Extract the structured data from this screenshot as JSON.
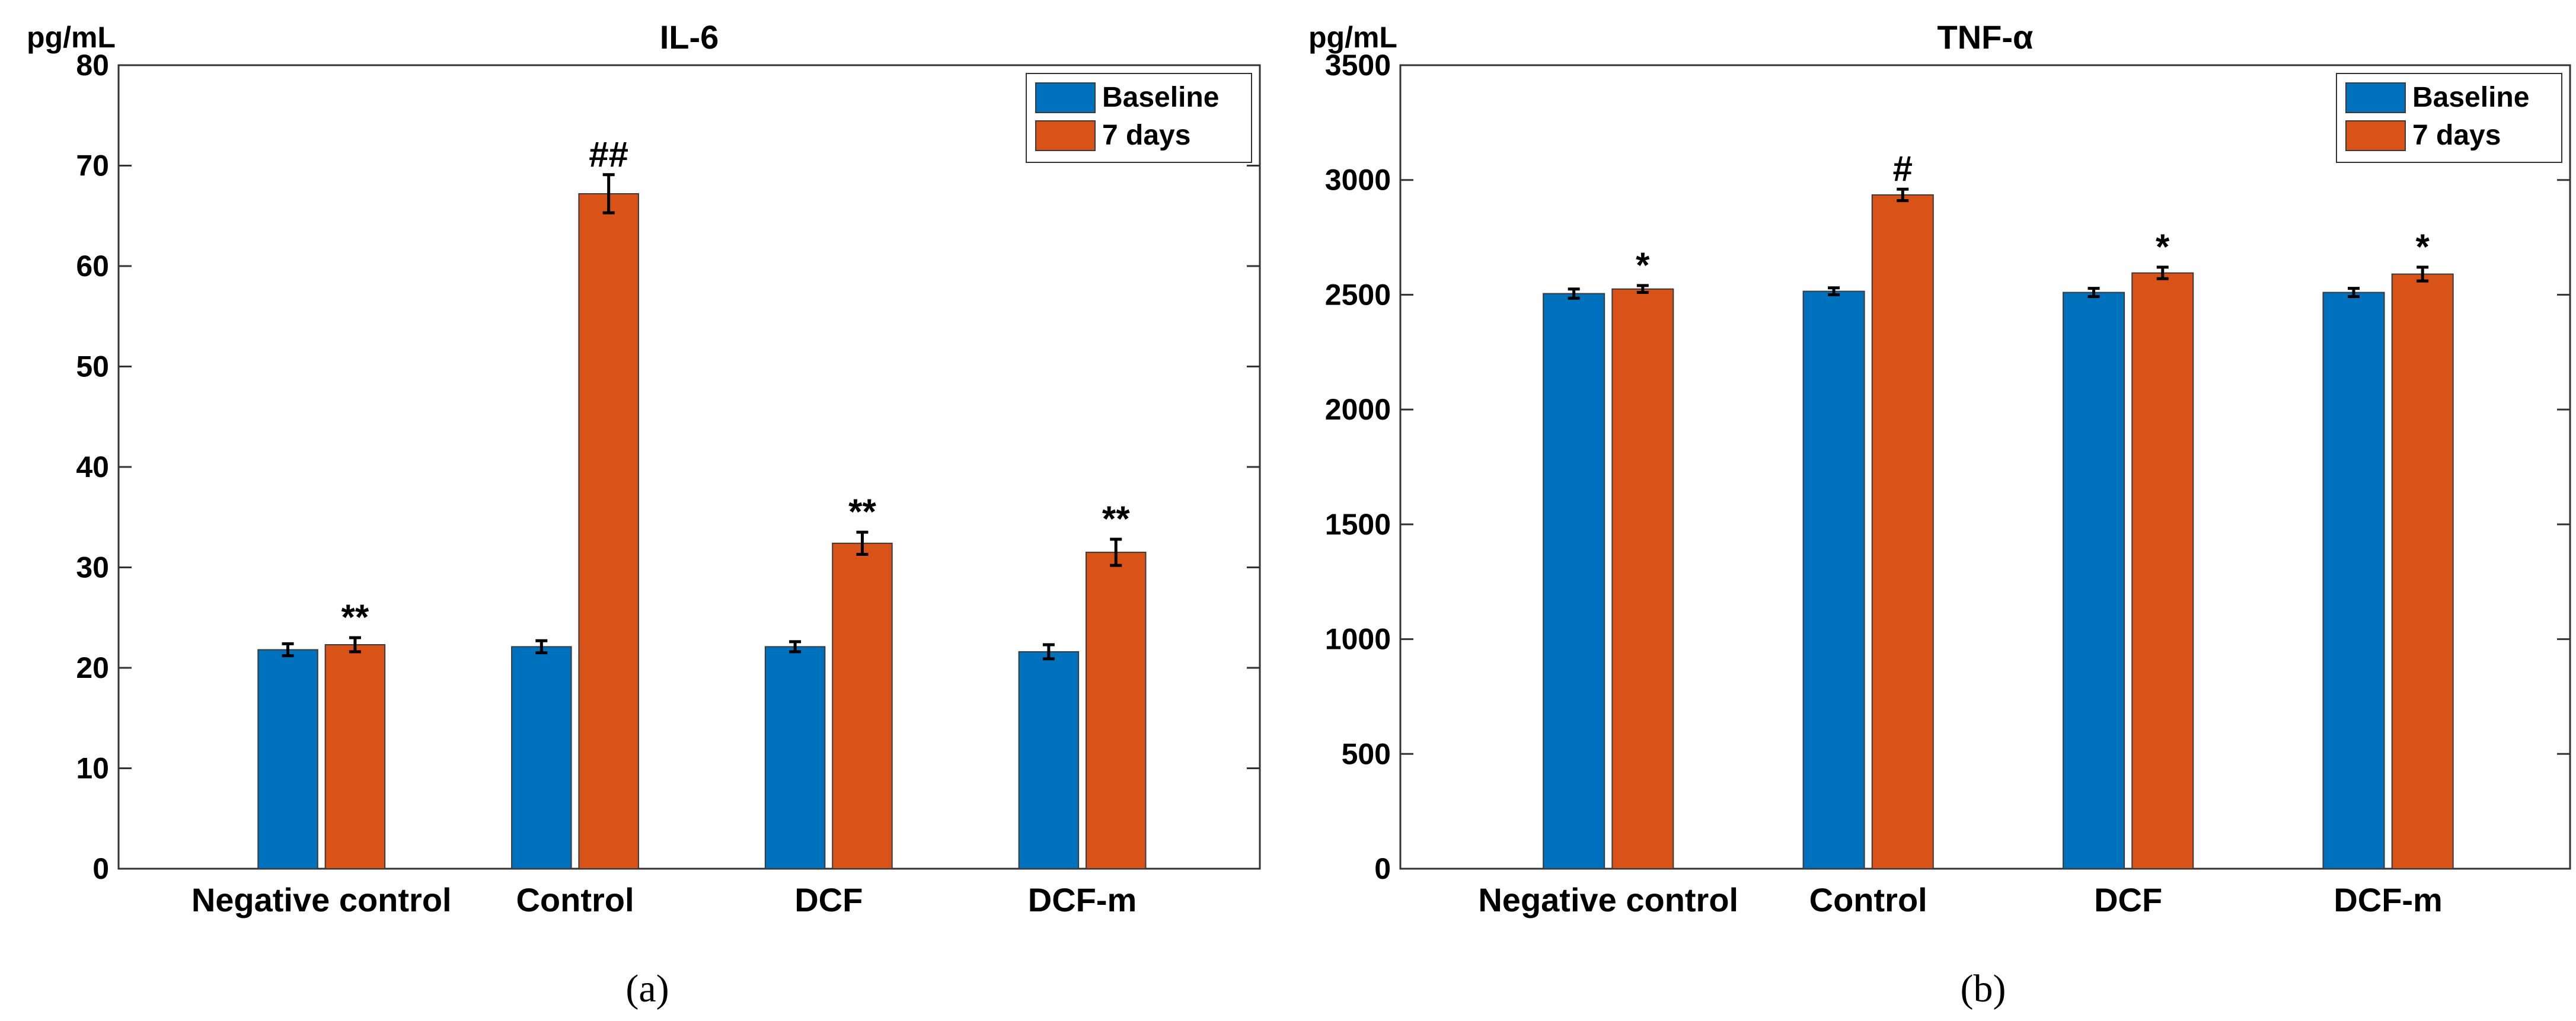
{
  "chart_data": [
    {
      "type": "bar",
      "title": "IL-6",
      "unit_label": "pg/mL",
      "xlabel": "",
      "ylabel": "pg/mL",
      "ylim": [
        0,
        80
      ],
      "yticks": [
        0,
        10,
        20,
        30,
        40,
        50,
        60,
        70,
        80
      ],
      "categories": [
        "Negative control",
        "Control",
        "DCF",
        "DCF-m"
      ],
      "series": [
        {
          "name": "Baseline",
          "color": "#0072BD",
          "values": [
            21.8,
            22.1,
            22.1,
            21.6
          ],
          "errors": [
            0.6,
            0.6,
            0.5,
            0.7
          ]
        },
        {
          "name": "7 days",
          "color": "#D95319",
          "values": [
            22.3,
            67.2,
            32.4,
            31.5
          ],
          "errors": [
            0.7,
            1.9,
            1.1,
            1.3
          ]
        }
      ],
      "annotations": [
        {
          "category": "Negative control",
          "series": "7 days",
          "text": "**"
        },
        {
          "category": "Control",
          "series": "7 days",
          "text": "##"
        },
        {
          "category": "DCF",
          "series": "7 days",
          "text": "**"
        },
        {
          "category": "DCF-m",
          "series": "7 days",
          "text": "**"
        }
      ],
      "legend_position": "top-right",
      "grid": false,
      "panel_label": "(a)"
    },
    {
      "type": "bar",
      "title": "TNF-α",
      "unit_label": "pg/mL",
      "xlabel": "",
      "ylabel": "pg/mL",
      "ylim": [
        0,
        3500
      ],
      "yticks": [
        0,
        500,
        1000,
        1500,
        2000,
        2500,
        3000,
        3500
      ],
      "categories": [
        "Negative control",
        "Control",
        "DCF",
        "DCF-m"
      ],
      "series": [
        {
          "name": "Baseline",
          "color": "#0072BD",
          "values": [
            2505,
            2515,
            2510,
            2510
          ],
          "errors": [
            20,
            15,
            18,
            18
          ]
        },
        {
          "name": "7 days",
          "color": "#D95319",
          "values": [
            2525,
            2935,
            2595,
            2590
          ],
          "errors": [
            15,
            25,
            25,
            30
          ]
        }
      ],
      "annotations": [
        {
          "category": "Negative control",
          "series": "7 days",
          "text": "*"
        },
        {
          "category": "Control",
          "series": "7 days",
          "text": "#"
        },
        {
          "category": "DCF",
          "series": "7 days",
          "text": "*"
        },
        {
          "category": "DCF-m",
          "series": "7 days",
          "text": "*"
        }
      ],
      "legend_position": "top-right",
      "grid": false,
      "panel_label": "(b)"
    }
  ]
}
